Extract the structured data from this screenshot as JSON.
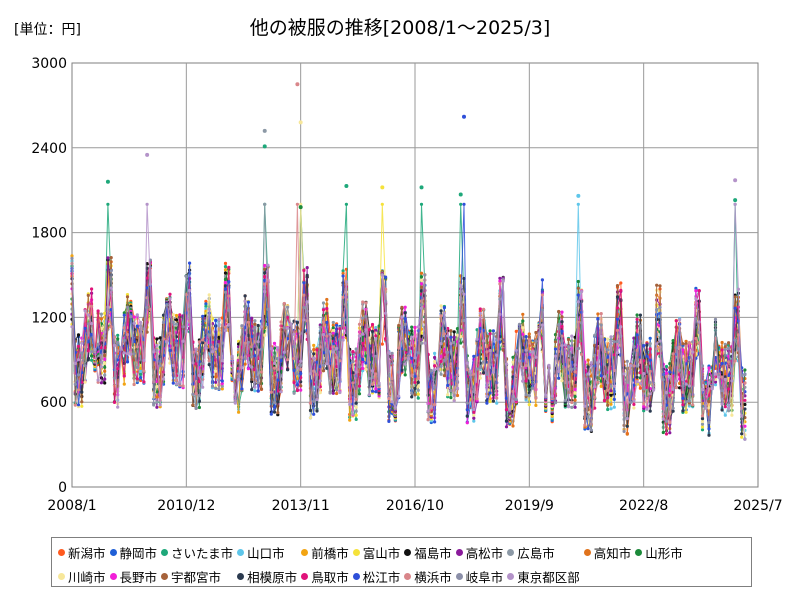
{
  "unit_label": "[単位：円]",
  "chart_data": {
    "type": "line",
    "title": "他の被服の推移[2008/1～2025/3]",
    "xlabel": "",
    "ylabel": "",
    "ylim": [
      0,
      3000
    ],
    "yticks": [
      0,
      600,
      1200,
      1800,
      2400,
      3000
    ],
    "xlim": [
      "2008/1",
      "2025/7"
    ],
    "xticks": [
      "2008/1",
      "2010/12",
      "2013/11",
      "2016/10",
      "2019/9",
      "2022/8",
      "2025/7"
    ],
    "grid": true,
    "legend_position": "bottom",
    "series": [
      {
        "name": "新潟市",
        "color": "#ff5a1f"
      },
      {
        "name": "静岡市",
        "color": "#1f5fd6"
      },
      {
        "name": "さいたま市",
        "color": "#1ea87a"
      },
      {
        "name": "山口市",
        "color": "#5ec6ea"
      },
      {
        "name": "前橋市",
        "color": "#f2a413"
      },
      {
        "name": "富山市",
        "color": "#f5e23a"
      },
      {
        "name": "福島市",
        "color": "#111111"
      },
      {
        "name": "高松市",
        "color": "#8a1a9b"
      },
      {
        "name": "広島市",
        "color": "#8c99a6"
      },
      {
        "name": "高知市",
        "color": "#e0731c"
      },
      {
        "name": "山形市",
        "color": "#1c8a3a"
      },
      {
        "name": "川崎市",
        "color": "#f7e79a"
      },
      {
        "name": "長野市",
        "color": "#f21ed8"
      },
      {
        "name": "宇都宮市",
        "color": "#a6623a"
      },
      {
        "name": "相模原市",
        "color": "#2b3a4f"
      },
      {
        "name": "鳥取市",
        "color": "#e0137a"
      },
      {
        "name": "松江市",
        "color": "#2e4fd9"
      },
      {
        "name": "横浜市",
        "color": "#d9868a"
      },
      {
        "name": "岐阜市",
        "color": "#8b8fa8"
      },
      {
        "name": "東京都区部",
        "color": "#b493c9"
      }
    ],
    "peaks": [
      {
        "series": "横浜市",
        "x": "2013/10",
        "y": 2850
      },
      {
        "series": "川崎市",
        "x": "2013/11",
        "y": 2580
      },
      {
        "series": "松江市",
        "x": "2018/1",
        "y": 2620
      },
      {
        "series": "広島市",
        "x": "2012/12",
        "y": 2520
      },
      {
        "series": "さいたま市",
        "x": "2012/12",
        "y": 2410
      },
      {
        "series": "東京都区部",
        "x": "2009/12",
        "y": 2350
      },
      {
        "series": "東京都区部",
        "x": "2024/12",
        "y": 2170
      },
      {
        "series": "さいたま市",
        "x": "2008/12",
        "y": 2160
      },
      {
        "series": "山形市",
        "x": "2013/11",
        "y": 1980
      },
      {
        "series": "さいたま市",
        "x": "2015/1",
        "y": 2130
      },
      {
        "series": "富山市",
        "x": "2015/12",
        "y": 2120
      },
      {
        "series": "さいたま市",
        "x": "2016/12",
        "y": 2120
      },
      {
        "series": "さいたま市",
        "x": "2017/12",
        "y": 2070
      },
      {
        "series": "山口市",
        "x": "2020/12",
        "y": 2060
      },
      {
        "series": "さいたま市",
        "x": "2024/12",
        "y": 2030
      }
    ]
  }
}
